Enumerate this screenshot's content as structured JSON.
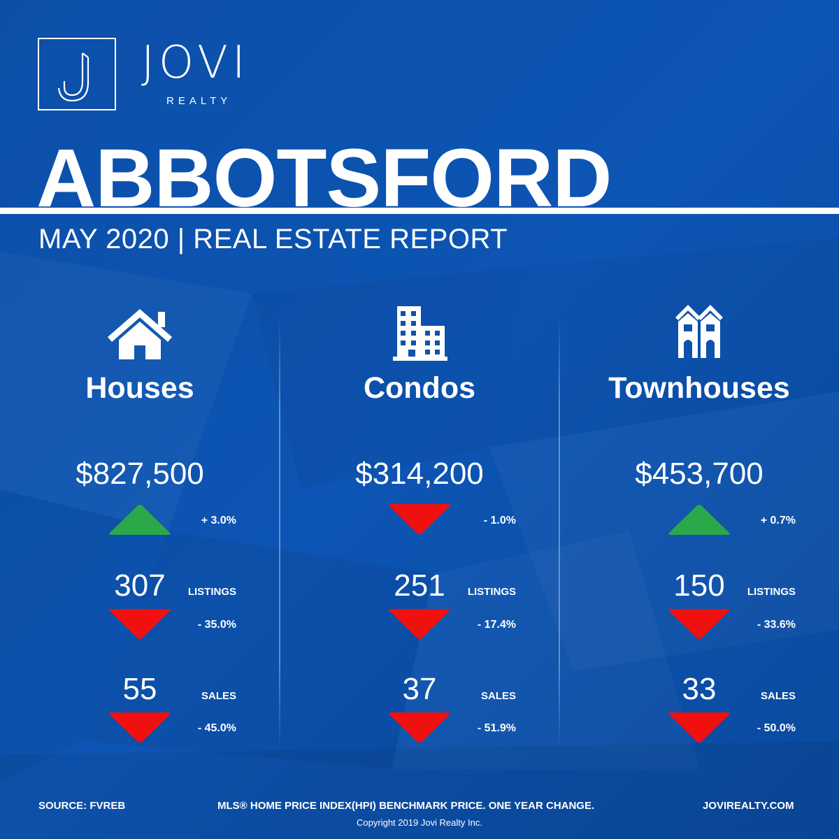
{
  "brand": {
    "name": "JOVI",
    "sub": "REALTY"
  },
  "city": "ABBOTSFORD",
  "subtitle": "MAY 2020 | REAL ESTATE REPORT",
  "colors": {
    "background": "#0d52ad",
    "up": "#2aa84a",
    "down": "#f01010"
  },
  "columns": [
    {
      "icon": "house-icon",
      "title": "Houses",
      "price": "$827,500",
      "price_change": "+ 3.0%",
      "price_dir": "up",
      "listings": "307",
      "listings_label": "LISTINGS",
      "listings_change": "- 35.0%",
      "listings_dir": "down",
      "sales": "55",
      "sales_label": "SALES",
      "sales_change": "- 45.0%",
      "sales_dir": "down"
    },
    {
      "icon": "condo-building-icon",
      "title": "Condos",
      "price": "$314,200",
      "price_change": "- 1.0%",
      "price_dir": "down",
      "listings": "251",
      "listings_label": "LISTINGS",
      "listings_change": "- 17.4%",
      "listings_dir": "down",
      "sales": "37",
      "sales_label": "SALES",
      "sales_change": "- 51.9%",
      "sales_dir": "down"
    },
    {
      "icon": "townhouse-icon",
      "title": "Townhouses",
      "price": "$453,700",
      "price_change": "+ 0.7%",
      "price_dir": "up",
      "listings": "150",
      "listings_label": "LISTINGS",
      "listings_change": "- 33.6%",
      "listings_dir": "down",
      "sales": "33",
      "sales_label": "SALES",
      "sales_change": "- 50.0%",
      "sales_dir": "down"
    }
  ],
  "footer": {
    "source": "SOURCE:  FVREB",
    "note": "MLS® HOME PRICE INDEX(HPI) BENCHMARK PRICE. ONE YEAR CHANGE.",
    "website": "JOVIREALTY.COM",
    "copyright": "Copyright 2019 Jovi Realty Inc."
  }
}
